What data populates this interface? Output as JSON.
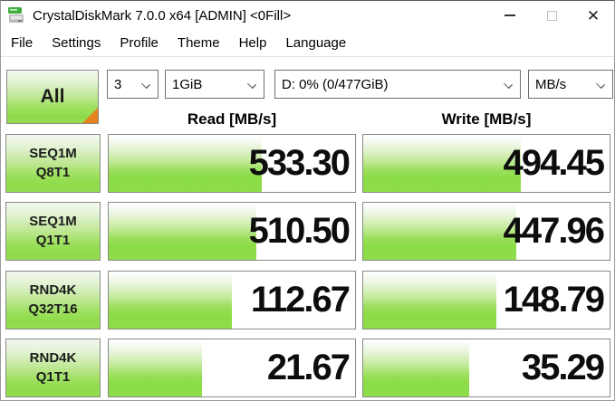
{
  "window": {
    "title": "CrystalDiskMark 7.0.0 x64 [ADMIN] <0Fill>",
    "close_glyph": "✕"
  },
  "menu": {
    "items": [
      "File",
      "Settings",
      "Profile",
      "Theme",
      "Help",
      "Language"
    ]
  },
  "toolbar": {
    "all_label": "All",
    "combos": [
      {
        "name": "test-count-select",
        "value": "3"
      },
      {
        "name": "test-size-select",
        "value": "1GiB"
      },
      {
        "name": "target-drive-select",
        "value": "D: 0% (0/477GiB)"
      },
      {
        "name": "unit-select",
        "value": "MB/s"
      }
    ]
  },
  "columns": {
    "read": "Read [MB/s]",
    "write": "Write [MB/s]"
  },
  "rows": [
    {
      "label_line1": "SEQ1M",
      "label_line2": "Q8T1",
      "read": "533.30",
      "write": "494.45",
      "read_fill_pct": 62,
      "write_fill_pct": 64
    },
    {
      "label_line1": "SEQ1M",
      "label_line2": "Q1T1",
      "read": "510.50",
      "write": "447.96",
      "read_fill_pct": 60,
      "write_fill_pct": 62
    },
    {
      "label_line1": "RND4K",
      "label_line2": "Q32T16",
      "read": "112.67",
      "write": "148.79",
      "read_fill_pct": 50,
      "write_fill_pct": 54
    },
    {
      "label_line1": "RND4K",
      "label_line2": "Q1T1",
      "read": "21.67",
      "write": "35.29",
      "read_fill_pct": 38,
      "write_fill_pct": 43
    }
  ],
  "colors": {
    "bar_green": "#8edb4b",
    "corner_orange": "#e8821e",
    "cell_border": "#8a8a8a",
    "text": "#111111"
  }
}
